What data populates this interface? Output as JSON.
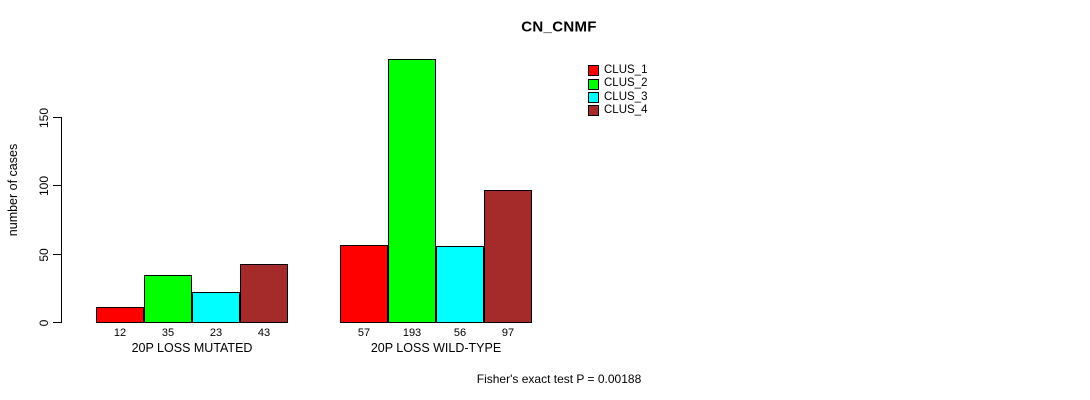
{
  "chart_data": {
    "type": "bar",
    "title": "CN_CNMF",
    "xlabel": "",
    "ylabel": "number of cases",
    "categories": [
      "20P LOSS MUTATED",
      "20P LOSS WILD-TYPE"
    ],
    "series": [
      {
        "name": "CLUS_1",
        "color": "#ff0000",
        "values": [
          12,
          57
        ]
      },
      {
        "name": "CLUS_2",
        "color": "#00ff00",
        "values": [
          35,
          193
        ]
      },
      {
        "name": "CLUS_3",
        "color": "#00ffff",
        "values": [
          23,
          56
        ]
      },
      {
        "name": "CLUS_4",
        "color": "#a52a2a",
        "values": [
          43,
          97
        ]
      }
    ],
    "yticks": [
      0,
      50,
      100,
      150
    ],
    "ylim": [
      0,
      197
    ],
    "grid": false,
    "bar_value_labels_shown": true,
    "legend_position": "top-right",
    "annotation": "Fisher's exact test P = 0.00188"
  }
}
